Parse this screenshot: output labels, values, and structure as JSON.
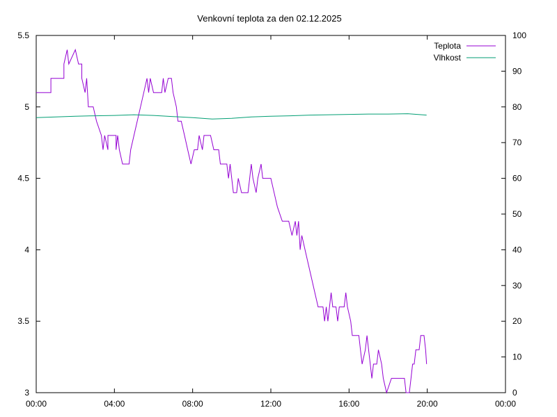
{
  "chart_data": {
    "type": "line",
    "title": "Venkovní teplota za den 02.12.2025",
    "xlabel": "",
    "ylabel": "",
    "y2label": "",
    "grid": false,
    "legend_placement": "top-right",
    "x_domain_hours": [
      0,
      24
    ],
    "x_tick_labels": [
      "00:00",
      "04:00",
      "08:00",
      "12:00",
      "16:00",
      "20:00",
      "00:00"
    ],
    "y_range": [
      3,
      5.5
    ],
    "y_ticks": [
      "3",
      "3.5",
      "4",
      "4.5",
      "5",
      "5.5"
    ],
    "y2_range": [
      0,
      100
    ],
    "y2_ticks": [
      "0",
      "10",
      "20",
      "30",
      "40",
      "50",
      "60",
      "70",
      "80",
      "90",
      "100"
    ],
    "series": [
      {
        "name": "Teplota",
        "axis": "left",
        "color": "#9400d3",
        "points": [
          [
            "00:00",
            5.1
          ],
          [
            "00:45",
            5.1
          ],
          [
            "00:45",
            5.2
          ],
          [
            "01:25",
            5.2
          ],
          [
            "01:25",
            5.3
          ],
          [
            "01:35",
            5.4
          ],
          [
            "01:40",
            5.3
          ],
          [
            "02:00",
            5.4
          ],
          [
            "02:10",
            5.3
          ],
          [
            "02:20",
            5.3
          ],
          [
            "02:20",
            5.2
          ],
          [
            "02:30",
            5.1
          ],
          [
            "02:35",
            5.2
          ],
          [
            "02:40",
            5.0
          ],
          [
            "02:55",
            5.0
          ],
          [
            "03:05",
            4.9
          ],
          [
            "03:20",
            4.8
          ],
          [
            "03:25",
            4.7
          ],
          [
            "03:30",
            4.8
          ],
          [
            "03:40",
            4.7
          ],
          [
            "03:40",
            4.8
          ],
          [
            "04:05",
            4.8
          ],
          [
            "04:05",
            4.7
          ],
          [
            "04:10",
            4.8
          ],
          [
            "04:15",
            4.7
          ],
          [
            "04:25",
            4.6
          ],
          [
            "04:45",
            4.6
          ],
          [
            "04:50",
            4.7
          ],
          [
            "05:00",
            4.8
          ],
          [
            "05:10",
            4.9
          ],
          [
            "05:20",
            5.0
          ],
          [
            "05:30",
            5.1
          ],
          [
            "05:40",
            5.2
          ],
          [
            "05:45",
            5.1
          ],
          [
            "05:50",
            5.2
          ],
          [
            "06:00",
            5.1
          ],
          [
            "06:25",
            5.1
          ],
          [
            "06:30",
            5.2
          ],
          [
            "06:35",
            5.1
          ],
          [
            "06:45",
            5.2
          ],
          [
            "06:55",
            5.2
          ],
          [
            "07:00",
            5.1
          ],
          [
            "07:10",
            5.0
          ],
          [
            "07:15",
            4.9
          ],
          [
            "07:25",
            4.9
          ],
          [
            "07:35",
            4.8
          ],
          [
            "07:45",
            4.7
          ],
          [
            "07:55",
            4.6
          ],
          [
            "08:05",
            4.7
          ],
          [
            "08:15",
            4.7
          ],
          [
            "08:20",
            4.8
          ],
          [
            "08:30",
            4.7
          ],
          [
            "08:35",
            4.8
          ],
          [
            "08:55",
            4.8
          ],
          [
            "09:05",
            4.7
          ],
          [
            "09:20",
            4.7
          ],
          [
            "09:25",
            4.6
          ],
          [
            "09:45",
            4.6
          ],
          [
            "09:50",
            4.5
          ],
          [
            "09:55",
            4.6
          ],
          [
            "10:00",
            4.5
          ],
          [
            "10:05",
            4.4
          ],
          [
            "10:15",
            4.4
          ],
          [
            "10:20",
            4.5
          ],
          [
            "10:30",
            4.4
          ],
          [
            "10:50",
            4.4
          ],
          [
            "10:55",
            4.5
          ],
          [
            "11:00",
            4.6
          ],
          [
            "11:05",
            4.5
          ],
          [
            "11:15",
            4.4
          ],
          [
            "11:20",
            4.5
          ],
          [
            "11:30",
            4.6
          ],
          [
            "11:35",
            4.5
          ],
          [
            "12:00",
            4.5
          ],
          [
            "12:10",
            4.4
          ],
          [
            "12:20",
            4.3
          ],
          [
            "12:35",
            4.2
          ],
          [
            "12:55",
            4.2
          ],
          [
            "13:05",
            4.1
          ],
          [
            "13:15",
            4.2
          ],
          [
            "13:20",
            4.1
          ],
          [
            "13:25",
            4.2
          ],
          [
            "13:30",
            4.0
          ],
          [
            "13:35",
            4.1
          ],
          [
            "13:45",
            4.0
          ],
          [
            "13:55",
            3.9
          ],
          [
            "14:05",
            3.8
          ],
          [
            "14:15",
            3.7
          ],
          [
            "14:25",
            3.6
          ],
          [
            "14:40",
            3.6
          ],
          [
            "14:45",
            3.5
          ],
          [
            "14:50",
            3.6
          ],
          [
            "14:55",
            3.5
          ],
          [
            "15:05",
            3.7
          ],
          [
            "15:10",
            3.6
          ],
          [
            "15:20",
            3.6
          ],
          [
            "15:25",
            3.5
          ],
          [
            "15:30",
            3.6
          ],
          [
            "15:45",
            3.6
          ],
          [
            "15:50",
            3.7
          ],
          [
            "15:55",
            3.6
          ],
          [
            "16:05",
            3.5
          ],
          [
            "16:10",
            3.4
          ],
          [
            "16:30",
            3.4
          ],
          [
            "16:35",
            3.3
          ],
          [
            "16:40",
            3.2
          ],
          [
            "16:50",
            3.3
          ],
          [
            "16:55",
            3.4
          ],
          [
            "17:00",
            3.3
          ],
          [
            "17:05",
            3.2
          ],
          [
            "17:10",
            3.1
          ],
          [
            "17:15",
            3.2
          ],
          [
            "17:25",
            3.2
          ],
          [
            "17:30",
            3.3
          ],
          [
            "17:40",
            3.2
          ],
          [
            "17:45",
            3.1
          ],
          [
            "17:55",
            3.0
          ],
          [
            "18:10",
            3.1
          ],
          [
            "18:50",
            3.1
          ],
          [
            "18:55",
            3.0
          ],
          [
            "19:00",
            2.9
          ],
          [
            "19:05",
            3.0
          ],
          [
            "19:10",
            3.1
          ],
          [
            "19:15",
            3.2
          ],
          [
            "19:20",
            3.2
          ],
          [
            "19:25",
            3.3
          ],
          [
            "19:35",
            3.3
          ],
          [
            "19:40",
            3.4
          ],
          [
            "19:50",
            3.4
          ],
          [
            "19:55",
            3.3
          ],
          [
            "19:58",
            3.2
          ]
        ]
      },
      {
        "name": "Vlhkost",
        "axis": "right",
        "color": "#009e73",
        "points": [
          [
            "00:00",
            77.0
          ],
          [
            "01:00",
            77.2
          ],
          [
            "02:00",
            77.4
          ],
          [
            "03:00",
            77.5
          ],
          [
            "04:00",
            77.6
          ],
          [
            "05:00",
            77.8
          ],
          [
            "06:00",
            77.6
          ],
          [
            "07:00",
            77.3
          ],
          [
            "08:00",
            77.0
          ],
          [
            "09:00",
            76.6
          ],
          [
            "10:00",
            76.8
          ],
          [
            "11:00",
            77.2
          ],
          [
            "12:00",
            77.4
          ],
          [
            "13:00",
            77.5
          ],
          [
            "14:00",
            77.7
          ],
          [
            "15:00",
            77.8
          ],
          [
            "16:00",
            77.9
          ],
          [
            "17:00",
            78.0
          ],
          [
            "18:00",
            78.0
          ],
          [
            "19:00",
            78.1
          ],
          [
            "19:58",
            77.7
          ]
        ]
      }
    ]
  }
}
